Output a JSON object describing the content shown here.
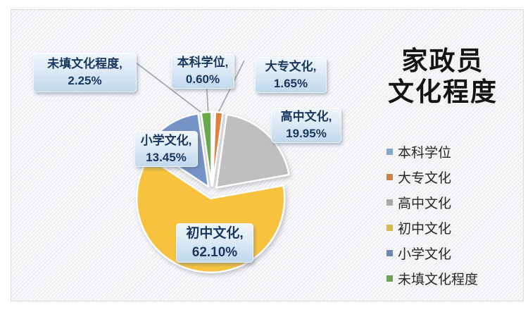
{
  "title": {
    "line1": "家政员",
    "line2": "文化程度"
  },
  "chart_data": {
    "type": "pie",
    "title": "家政员文化程度",
    "unit": "%",
    "direction": "clockwise",
    "start_angle_deg": 0,
    "exploded": true,
    "legend_position": "right",
    "categories": [
      "本科学位",
      "大专文化",
      "高中文化",
      "初中文化",
      "小学文化",
      "未填文化程度"
    ],
    "values": [
      0.6,
      1.65,
      19.95,
      62.1,
      13.45,
      2.25
    ],
    "slices": [
      {
        "label": "本科学位",
        "value": 0.6,
        "callout_name": "本科学位,",
        "callout_value": "0.60%",
        "slice_color": "#d8e3f0",
        "legend_color": "#84a8c6"
      },
      {
        "label": "大专文化",
        "value": 1.65,
        "callout_name": "大专文化,",
        "callout_value": "1.65%",
        "slice_color": "#e2803e",
        "legend_color": "#c9834c"
      },
      {
        "label": "高中文化",
        "value": 19.95,
        "callout_name": "高中文化,",
        "callout_value": "19.95%",
        "slice_color": "#bfbfbf",
        "legend_color": "#a8a8a8"
      },
      {
        "label": "初中文化",
        "value": 62.1,
        "callout_name": "初中文化,",
        "callout_value": "62.10%",
        "slice_color": "#f7c23e",
        "legend_color": "#d9b850"
      },
      {
        "label": "小学文化",
        "value": 13.45,
        "callout_name": "小学文化,",
        "callout_value": "13.45%",
        "slice_color": "#7493c7",
        "legend_color": "#7187b8"
      },
      {
        "label": "未填文化程度",
        "value": 2.25,
        "callout_name": "未填文化程度,",
        "callout_value": "2.25%",
        "slice_color": "#68a94c",
        "legend_color": "#6f9f55"
      }
    ]
  }
}
